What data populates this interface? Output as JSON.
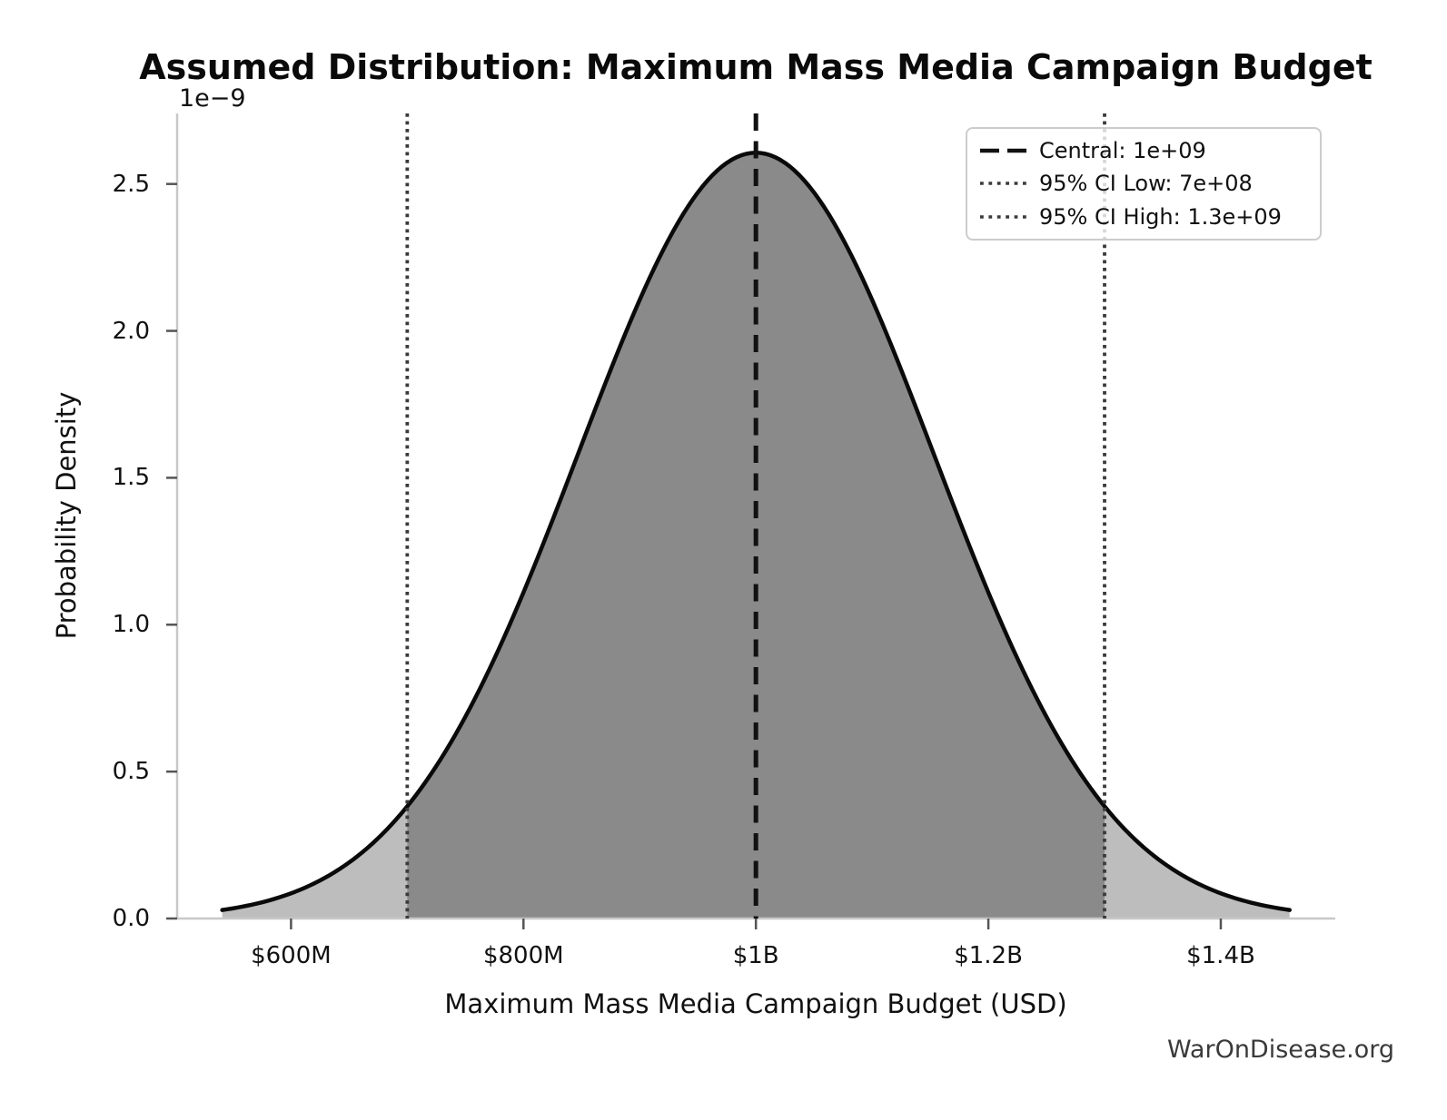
{
  "chart_data": {
    "type": "area",
    "title": "Assumed Distribution: Maximum Mass Media Campaign Budget",
    "xlabel": "Maximum Mass Media Campaign Budget (USD)",
    "ylabel": "Probability Density",
    "y_offset_label": "1e−9",
    "distribution": {
      "kind": "normal",
      "central": 1000000000,
      "ci_low": 700000000,
      "ci_high": 1300000000,
      "ci_level": "95%",
      "z": 1.96,
      "span_sigmas": 3,
      "peak_density": 2.6e-09
    },
    "x_ticks": [
      {
        "v": 600000000,
        "label": "$600M"
      },
      {
        "v": 800000000,
        "label": "$800M"
      },
      {
        "v": 1000000000,
        "label": "$1B"
      },
      {
        "v": 1200000000,
        "label": "$1.2B"
      },
      {
        "v": 1400000000,
        "label": "$1.4B"
      }
    ],
    "y_ticks": [
      {
        "v": 0,
        "label": "0.0"
      },
      {
        "v": 5e-10,
        "label": "0.5"
      },
      {
        "v": 1e-09,
        "label": "1.0"
      },
      {
        "v": 1.5e-09,
        "label": "1.5"
      },
      {
        "v": 2e-09,
        "label": "2.0"
      },
      {
        "v": 2.5e-09,
        "label": "2.5"
      }
    ],
    "xlim": [
      502000000,
      1498500000
    ],
    "ylim": [
      0,
      2.74e-09
    ],
    "legend": [
      {
        "style": "dashed",
        "label": "Central: 1e+09"
      },
      {
        "style": "dotted",
        "label": "95% CI Low: 7e+08"
      },
      {
        "style": "dotted",
        "label": "95% CI High: 1.3e+09"
      }
    ],
    "grid": false,
    "legend_position": "upper right",
    "watermark": "WarOnDisease.org",
    "colors": {
      "curve": "#0a0a0a",
      "fill_outer": "#bdbdbd",
      "fill_inner": "#8a8a8a",
      "central_line": "#111111",
      "ci_line": "#3a3a3a",
      "spine": "#c8c8c8",
      "tick": "#555555"
    }
  }
}
